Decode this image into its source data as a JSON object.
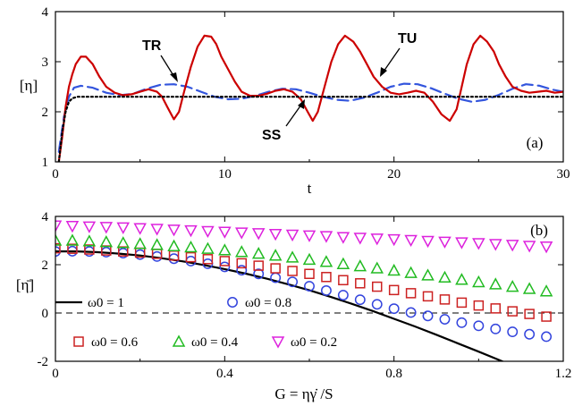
{
  "chart_data": [
    {
      "panel": "(a)",
      "type": "line",
      "xlabel": "t",
      "ylabel": "[η]",
      "xlim": [
        0,
        30
      ],
      "ylim": [
        1,
        4
      ],
      "xticks": [
        "0",
        "10",
        "20",
        "30"
      ],
      "yticks": [
        "1",
        "2",
        "3",
        "4"
      ],
      "annotations": [
        "TR",
        "SS",
        "TU"
      ],
      "series": [
        {
          "name": "TU",
          "color": "#cc0000",
          "style": "solid",
          "x": [
            0.2,
            0.4,
            0.6,
            0.8,
            1.0,
            1.2,
            1.5,
            1.8,
            2.2,
            2.6,
            3.0,
            3.5,
            4.0,
            4.5,
            5.0,
            5.5,
            6.0,
            6.3,
            6.6,
            7.0,
            7.3,
            7.6,
            8.0,
            8.4,
            8.8,
            9.2,
            9.5,
            9.8,
            10.2,
            10.6,
            11.0,
            11.5,
            12.0,
            12.5,
            13.0,
            13.5,
            14.0,
            14.5,
            14.9,
            15.2,
            15.5,
            15.9,
            16.3,
            16.7,
            17.1,
            17.6,
            18.0,
            18.4,
            18.8,
            19.3,
            19.8,
            20.3,
            20.8,
            21.3,
            21.8,
            22.3,
            22.8,
            23.3,
            23.7,
            24.0,
            24.3,
            24.7,
            25.1,
            25.5,
            25.9,
            26.2,
            26.6,
            27.0,
            27.5,
            28.0,
            28.5,
            29.0,
            29.5,
            30.0
          ],
          "y": [
            1.0,
            1.5,
            2.1,
            2.5,
            2.75,
            2.95,
            3.1,
            3.1,
            2.95,
            2.7,
            2.5,
            2.38,
            2.33,
            2.35,
            2.4,
            2.45,
            2.4,
            2.3,
            2.1,
            1.85,
            2.0,
            2.4,
            2.9,
            3.3,
            3.52,
            3.5,
            3.35,
            3.1,
            2.85,
            2.6,
            2.4,
            2.32,
            2.32,
            2.36,
            2.42,
            2.45,
            2.4,
            2.25,
            2.0,
            1.82,
            2.0,
            2.5,
            3.0,
            3.35,
            3.52,
            3.4,
            3.2,
            2.95,
            2.7,
            2.5,
            2.38,
            2.35,
            2.38,
            2.42,
            2.38,
            2.2,
            1.95,
            1.82,
            2.05,
            2.5,
            2.95,
            3.35,
            3.52,
            3.4,
            3.2,
            2.95,
            2.7,
            2.5,
            2.42,
            2.38,
            2.4,
            2.42,
            2.38,
            2.4
          ]
        },
        {
          "name": "TR",
          "color": "#3355dd",
          "style": "dashed",
          "x": [
            0.2,
            0.5,
            0.8,
            1.1,
            1.5,
            2.2,
            3.0,
            3.8,
            4.6,
            5.4,
            6.2,
            7.0,
            7.8,
            8.6,
            9.4,
            10.2,
            11.0,
            11.8,
            12.6,
            13.4,
            14.2,
            15.0,
            15.8,
            16.6,
            17.4,
            18.2,
            19.0,
            19.8,
            20.6,
            21.4,
            22.2,
            23.0,
            23.8,
            24.6,
            25.4,
            26.2,
            27.0,
            27.8,
            28.6,
            29.4,
            30.0
          ],
          "y": [
            1.2,
            1.9,
            2.3,
            2.48,
            2.52,
            2.48,
            2.38,
            2.33,
            2.36,
            2.46,
            2.54,
            2.55,
            2.5,
            2.4,
            2.3,
            2.25,
            2.26,
            2.32,
            2.4,
            2.46,
            2.45,
            2.38,
            2.3,
            2.24,
            2.22,
            2.28,
            2.38,
            2.5,
            2.56,
            2.55,
            2.47,
            2.36,
            2.26,
            2.2,
            2.24,
            2.34,
            2.46,
            2.55,
            2.52,
            2.44,
            2.4
          ]
        },
        {
          "name": "SS",
          "color": "#000000",
          "style": "dotted",
          "x": [
            0.2,
            0.4,
            0.6,
            0.8,
            1.0,
            1.3,
            1.8,
            3.0,
            10.0,
            20.0,
            30.0
          ],
          "y": [
            1.0,
            1.6,
            2.0,
            2.2,
            2.27,
            2.3,
            2.3,
            2.3,
            2.3,
            2.3,
            2.3
          ]
        }
      ]
    },
    {
      "panel": "(b)",
      "type": "scatter",
      "xlabel": "G = ηγ̇ /S",
      "ylabel": "[η̄]",
      "xlim": [
        0,
        1.2
      ],
      "ylim": [
        -2,
        4
      ],
      "xticks": [
        "0",
        "0.4",
        "0.8",
        "1.2"
      ],
      "yticks": [
        "-2",
        "0",
        "2",
        "4"
      ],
      "reference_line": {
        "y": 0,
        "style": "dashed"
      },
      "x": [
        0.0,
        0.04,
        0.08,
        0.12,
        0.16,
        0.2,
        0.24,
        0.28,
        0.32,
        0.36,
        0.4,
        0.44,
        0.48,
        0.52,
        0.56,
        0.6,
        0.64,
        0.68,
        0.72,
        0.76,
        0.8,
        0.84,
        0.88,
        0.92,
        0.96,
        1.0,
        1.04,
        1.08,
        1.12,
        1.16
      ],
      "series": [
        {
          "name": "ω0 = 1",
          "marker": "line",
          "color": "#000000",
          "line_x": [
            0.0,
            0.05,
            0.1,
            0.15,
            0.2,
            0.25,
            0.3,
            0.35,
            0.4,
            0.45,
            0.5,
            0.55,
            0.6,
            0.65,
            0.7,
            0.75,
            0.8,
            0.85,
            0.9,
            0.95,
            1.0,
            1.05,
            1.1,
            1.15,
            1.2
          ],
          "line_y": [
            2.55,
            2.55,
            2.52,
            2.46,
            2.38,
            2.27,
            2.14,
            1.99,
            1.82,
            1.63,
            1.42,
            1.19,
            0.94,
            0.67,
            0.38,
            0.08,
            -0.24,
            -0.56,
            -0.9,
            -1.25,
            -1.6,
            -1.96,
            -2.33,
            -2.7,
            -3.08
          ]
        },
        {
          "name": "ω0 = 0.8",
          "marker": "circle",
          "color": "#3344dd",
          "values": [
            2.55,
            2.56,
            2.55,
            2.52,
            2.48,
            2.42,
            2.34,
            2.25,
            2.15,
            2.04,
            1.91,
            1.77,
            1.62,
            1.46,
            1.29,
            1.11,
            0.93,
            0.74,
            0.55,
            0.36,
            0.18,
            0.02,
            -0.12,
            -0.26,
            -0.4,
            -0.53,
            -0.66,
            -0.78,
            -0.88,
            -0.98
          ]
        },
        {
          "name": "ω0 = 0.6",
          "marker": "square",
          "color": "#cc2222",
          "values": [
            2.68,
            2.66,
            2.63,
            2.59,
            2.55,
            2.5,
            2.45,
            2.38,
            2.31,
            2.23,
            2.15,
            2.06,
            1.96,
            1.85,
            1.74,
            1.62,
            1.49,
            1.36,
            1.23,
            1.09,
            0.95,
            0.82,
            0.69,
            0.56,
            0.43,
            0.31,
            0.19,
            0.07,
            -0.04,
            -0.15
          ]
        },
        {
          "name": "ω0 = 0.4",
          "marker": "triangle-up",
          "color": "#22bb22",
          "values": [
            3.0,
            3.0,
            2.97,
            2.94,
            2.9,
            2.86,
            2.82,
            2.77,
            2.72,
            2.66,
            2.6,
            2.53,
            2.46,
            2.38,
            2.3,
            2.21,
            2.12,
            2.03,
            1.94,
            1.85,
            1.76,
            1.66,
            1.56,
            1.47,
            1.38,
            1.28,
            1.19,
            1.09,
            1.0,
            0.9
          ]
        },
        {
          "name": "ω0 = 0.2",
          "marker": "triangle-down",
          "color": "#dd22dd",
          "values": [
            3.62,
            3.6,
            3.58,
            3.56,
            3.54,
            3.51,
            3.48,
            3.45,
            3.42,
            3.39,
            3.36,
            3.33,
            3.3,
            3.27,
            3.24,
            3.21,
            3.18,
            3.14,
            3.11,
            3.08,
            3.05,
            3.02,
            2.98,
            2.95,
            2.92,
            2.89,
            2.85,
            2.82,
            2.78,
            2.75
          ]
        }
      ],
      "legend": [
        {
          "label": "ω0 = 1",
          "marker": "line",
          "color": "#000000"
        },
        {
          "label": "ω0 = 0.8",
          "marker": "circle",
          "color": "#3344dd"
        },
        {
          "label": "ω0 = 0.6",
          "marker": "square",
          "color": "#cc2222"
        },
        {
          "label": "ω0 = 0.4",
          "marker": "triangle-up",
          "color": "#22bb22"
        },
        {
          "label": "ω0 = 0.2",
          "marker": "triangle-down",
          "color": "#dd22dd"
        }
      ]
    }
  ]
}
